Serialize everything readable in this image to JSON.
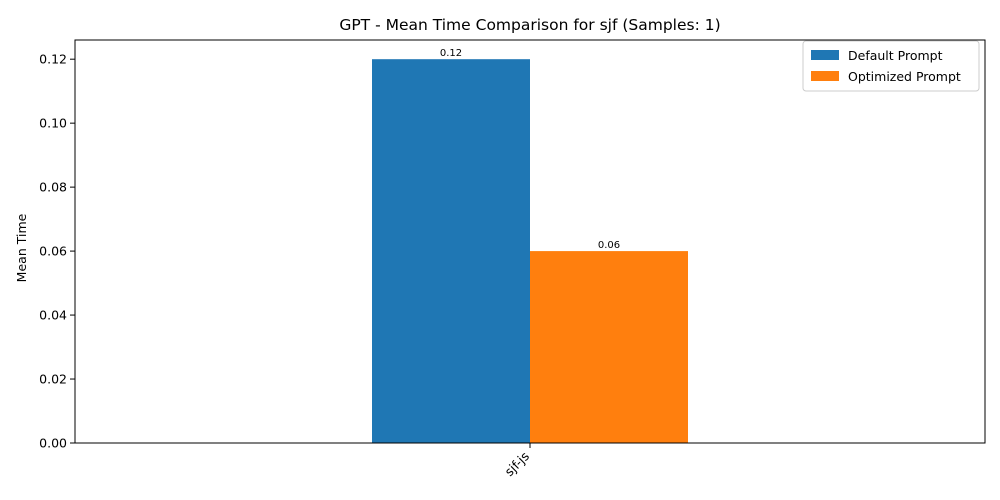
{
  "chart_data": {
    "type": "bar",
    "title": "GPT - Mean Time Comparison for sjf (Samples: 1)",
    "xlabel": "",
    "ylabel": "Mean Time",
    "categories": [
      "sjf-js"
    ],
    "series": [
      {
        "name": "Default Prompt",
        "values": [
          0.12
        ],
        "color": "#1f77b4",
        "labels": [
          "0.12"
        ]
      },
      {
        "name": "Optimized Prompt",
        "values": [
          0.06
        ],
        "color": "#ff7f0e",
        "labels": [
          "0.06"
        ]
      }
    ],
    "ylim": [
      0,
      0.126
    ],
    "yticks": [
      "0.00",
      "0.02",
      "0.04",
      "0.06",
      "0.08",
      "0.10",
      "0.12"
    ],
    "ytick_values": [
      0,
      0.02,
      0.04,
      0.06,
      0.08,
      0.1,
      0.12
    ],
    "xtick_rotation": 45,
    "grid": false,
    "legend_position": "top-right"
  }
}
